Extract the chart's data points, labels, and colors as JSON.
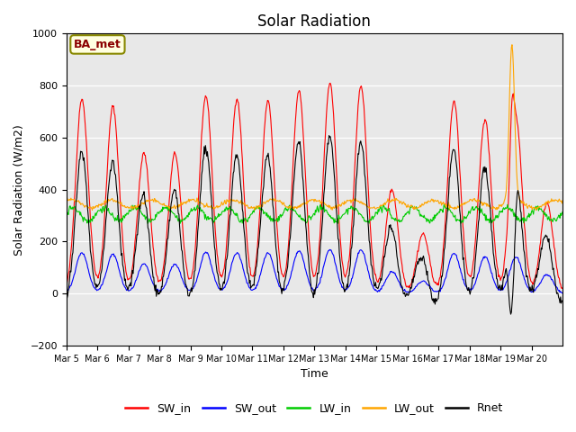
{
  "title": "Solar Radiation",
  "xlabel": "Time",
  "ylabel": "Solar Radiation (W/m2)",
  "ylim": [
    -200,
    1000
  ],
  "annotation": "BA_met",
  "x_tick_labels": [
    "Mar 5",
    "Mar 6",
    "Mar 7",
    "Mar 8",
    "Mar 9",
    "Mar 10",
    "Mar 11",
    "Mar 12",
    "Mar 13",
    "Mar 14",
    "Mar 15",
    "Mar 16",
    "Mar 17",
    "Mar 18",
    "Mar 19",
    "Mar 20"
  ],
  "legend_labels": [
    "SW_in",
    "SW_out",
    "LW_in",
    "LW_out",
    "Rnet"
  ],
  "legend_colors": [
    "red",
    "blue",
    "#00cc00",
    "orange",
    "black"
  ],
  "bg_color": "#e8e8e8",
  "fig_bg": "#ffffff",
  "yticks": [
    -200,
    0,
    200,
    400,
    600,
    800,
    1000
  ],
  "n_days": 16
}
